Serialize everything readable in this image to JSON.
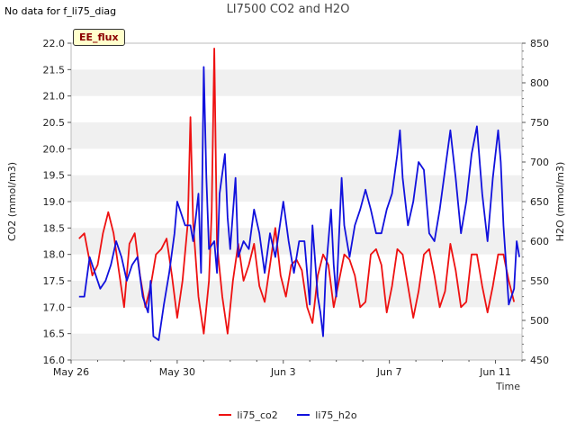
{
  "header": {
    "note": "No data for f_li75_diag",
    "badge": "EE_flux"
  },
  "legend": {
    "co2_label": "li75_co2",
    "h2o_label": "li75_h2o"
  },
  "chart_data": {
    "type": "line",
    "title": "LI7500 CO2 and H2O",
    "xlabel": "Time",
    "ylabel": "CO2 (mmol/m3)",
    "y2label": "H2O (mmol/m3)",
    "x_ticks": [
      "May 26",
      "May 30",
      "Jun 3",
      "Jun 7",
      "Jun 11"
    ],
    "x_range_days": [
      0,
      17
    ],
    "x_start_label": "May 26",
    "ylim": [
      16.0,
      22.0
    ],
    "y_ticks": [
      16.0,
      16.5,
      17.0,
      17.5,
      18.0,
      18.5,
      19.0,
      19.5,
      20.0,
      20.5,
      21.0,
      21.5,
      22.0
    ],
    "y2lim": [
      450,
      850
    ],
    "y2_ticks": [
      450,
      500,
      550,
      600,
      650,
      700,
      750,
      800,
      850
    ],
    "grid": "horizontal bands",
    "legend_position": "bottom",
    "colors": {
      "co2": "#ee1111",
      "h2o": "#1111dd",
      "band": "#f0f0f0"
    },
    "series": [
      {
        "name": "li75_co2",
        "axis": "left",
        "points": [
          [
            0.3,
            18.3
          ],
          [
            0.5,
            18.4
          ],
          [
            0.8,
            17.6
          ],
          [
            1.0,
            17.8
          ],
          [
            1.2,
            18.4
          ],
          [
            1.4,
            18.8
          ],
          [
            1.6,
            18.4
          ],
          [
            1.8,
            17.7
          ],
          [
            2.0,
            17.0
          ],
          [
            2.2,
            18.2
          ],
          [
            2.4,
            18.4
          ],
          [
            2.6,
            17.6
          ],
          [
            2.8,
            17.0
          ],
          [
            3.0,
            17.4
          ],
          [
            3.2,
            18.0
          ],
          [
            3.4,
            18.1
          ],
          [
            3.6,
            18.3
          ],
          [
            3.8,
            17.6
          ],
          [
            4.0,
            16.8
          ],
          [
            4.2,
            17.5
          ],
          [
            4.4,
            18.6
          ],
          [
            4.5,
            20.6
          ],
          [
            4.6,
            18.6
          ],
          [
            4.8,
            17.2
          ],
          [
            5.0,
            16.5
          ],
          [
            5.2,
            17.5
          ],
          [
            5.3,
            18.8
          ],
          [
            5.4,
            21.9
          ],
          [
            5.5,
            18.2
          ],
          [
            5.7,
            17.2
          ],
          [
            5.9,
            16.5
          ],
          [
            6.1,
            17.5
          ],
          [
            6.3,
            18.2
          ],
          [
            6.5,
            17.5
          ],
          [
            6.7,
            17.8
          ],
          [
            6.9,
            18.2
          ],
          [
            7.1,
            17.4
          ],
          [
            7.3,
            17.1
          ],
          [
            7.5,
            17.8
          ],
          [
            7.7,
            18.5
          ],
          [
            7.9,
            17.6
          ],
          [
            8.1,
            17.2
          ],
          [
            8.3,
            17.8
          ],
          [
            8.5,
            17.9
          ],
          [
            8.7,
            17.7
          ],
          [
            8.9,
            17.0
          ],
          [
            9.1,
            16.7
          ],
          [
            9.3,
            17.6
          ],
          [
            9.5,
            18.0
          ],
          [
            9.7,
            17.8
          ],
          [
            9.9,
            17.0
          ],
          [
            10.1,
            17.5
          ],
          [
            10.3,
            18.0
          ],
          [
            10.5,
            17.9
          ],
          [
            10.7,
            17.6
          ],
          [
            10.9,
            17.0
          ],
          [
            11.1,
            17.1
          ],
          [
            11.3,
            18.0
          ],
          [
            11.5,
            18.1
          ],
          [
            11.7,
            17.8
          ],
          [
            11.9,
            16.9
          ],
          [
            12.1,
            17.4
          ],
          [
            12.3,
            18.1
          ],
          [
            12.5,
            18.0
          ],
          [
            12.7,
            17.4
          ],
          [
            12.9,
            16.8
          ],
          [
            13.1,
            17.3
          ],
          [
            13.3,
            18.0
          ],
          [
            13.5,
            18.1
          ],
          [
            13.7,
            17.6
          ],
          [
            13.9,
            17.0
          ],
          [
            14.1,
            17.3
          ],
          [
            14.3,
            18.2
          ],
          [
            14.5,
            17.7
          ],
          [
            14.7,
            17.0
          ],
          [
            14.9,
            17.1
          ],
          [
            15.1,
            18.0
          ],
          [
            15.3,
            18.0
          ],
          [
            15.5,
            17.4
          ],
          [
            15.7,
            16.9
          ],
          [
            15.9,
            17.4
          ],
          [
            16.1,
            18.0
          ],
          [
            16.3,
            18.0
          ],
          [
            16.5,
            17.5
          ],
          [
            16.7,
            17.1
          ]
        ]
      },
      {
        "name": "li75_h2o",
        "axis": "right",
        "points": [
          [
            0.3,
            530
          ],
          [
            0.5,
            530
          ],
          [
            0.7,
            580
          ],
          [
            0.9,
            560
          ],
          [
            1.1,
            540
          ],
          [
            1.3,
            550
          ],
          [
            1.5,
            570
          ],
          [
            1.7,
            600
          ],
          [
            1.9,
            580
          ],
          [
            2.1,
            550
          ],
          [
            2.3,
            570
          ],
          [
            2.5,
            580
          ],
          [
            2.7,
            530
          ],
          [
            2.9,
            510
          ],
          [
            3.0,
            550
          ],
          [
            3.1,
            480
          ],
          [
            3.3,
            475
          ],
          [
            3.5,
            520
          ],
          [
            3.7,
            560
          ],
          [
            3.9,
            610
          ],
          [
            4.0,
            650
          ],
          [
            4.2,
            630
          ],
          [
            4.3,
            620
          ],
          [
            4.5,
            620
          ],
          [
            4.6,
            600
          ],
          [
            4.8,
            660
          ],
          [
            4.9,
            560
          ],
          [
            5.0,
            820
          ],
          [
            5.1,
            680
          ],
          [
            5.2,
            590
          ],
          [
            5.4,
            600
          ],
          [
            5.5,
            560
          ],
          [
            5.6,
            660
          ],
          [
            5.8,
            710
          ],
          [
            5.9,
            630
          ],
          [
            6.0,
            590
          ],
          [
            6.2,
            680
          ],
          [
            6.3,
            580
          ],
          [
            6.5,
            600
          ],
          [
            6.7,
            590
          ],
          [
            6.9,
            640
          ],
          [
            7.1,
            610
          ],
          [
            7.3,
            560
          ],
          [
            7.5,
            610
          ],
          [
            7.7,
            580
          ],
          [
            8.0,
            650
          ],
          [
            8.2,
            600
          ],
          [
            8.4,
            560
          ],
          [
            8.6,
            600
          ],
          [
            8.8,
            600
          ],
          [
            9.0,
            520
          ],
          [
            9.1,
            620
          ],
          [
            9.3,
            530
          ],
          [
            9.4,
            510
          ],
          [
            9.5,
            480
          ],
          [
            9.6,
            560
          ],
          [
            9.8,
            640
          ],
          [
            9.9,
            570
          ],
          [
            10.0,
            530
          ],
          [
            10.2,
            680
          ],
          [
            10.3,
            620
          ],
          [
            10.5,
            580
          ],
          [
            10.7,
            620
          ],
          [
            10.9,
            640
          ],
          [
            11.1,
            665
          ],
          [
            11.3,
            640
          ],
          [
            11.5,
            610
          ],
          [
            11.7,
            610
          ],
          [
            11.9,
            640
          ],
          [
            12.1,
            660
          ],
          [
            12.3,
            710
          ],
          [
            12.4,
            740
          ],
          [
            12.5,
            680
          ],
          [
            12.7,
            620
          ],
          [
            12.9,
            650
          ],
          [
            13.1,
            700
          ],
          [
            13.3,
            690
          ],
          [
            13.5,
            610
          ],
          [
            13.7,
            600
          ],
          [
            13.9,
            640
          ],
          [
            14.1,
            690
          ],
          [
            14.3,
            740
          ],
          [
            14.5,
            680
          ],
          [
            14.7,
            610
          ],
          [
            14.9,
            650
          ],
          [
            15.1,
            710
          ],
          [
            15.3,
            745
          ],
          [
            15.5,
            660
          ],
          [
            15.7,
            600
          ],
          [
            15.9,
            680
          ],
          [
            16.1,
            740
          ],
          [
            16.2,
            700
          ],
          [
            16.3,
            620
          ],
          [
            16.5,
            520
          ],
          [
            16.7,
            540
          ],
          [
            16.8,
            600
          ],
          [
            16.9,
            580
          ]
        ]
      }
    ]
  }
}
